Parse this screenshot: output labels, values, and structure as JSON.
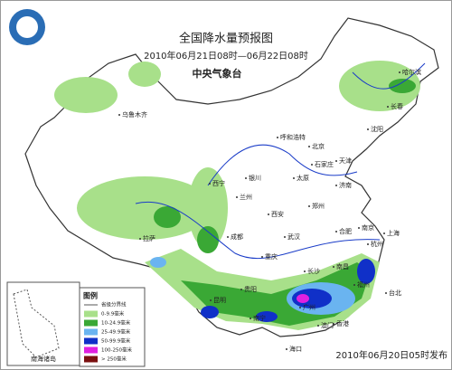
{
  "header": {
    "title": "全国降水量预报图",
    "period": "2010年06月21日08时—06月22日08时",
    "agency": "中央气象台"
  },
  "footer": {
    "issued": "2010年06月20日05时发布"
  },
  "cities": [
    "乌鲁木齐",
    "哈尔滨",
    "长春",
    "沈阳",
    "呼和浩特",
    "北京",
    "天津",
    "石家庄",
    "太原",
    "济南",
    "银川",
    "西宁",
    "兰州",
    "西安",
    "郑州",
    "南京",
    "合肥",
    "上海",
    "杭州",
    "武汉",
    "成都",
    "重庆",
    "拉萨",
    "长沙",
    "南昌",
    "福州",
    "台北",
    "贵阳",
    "昆明",
    "南宁",
    "广州",
    "香港",
    "澳门",
    "海口"
  ],
  "inset": {
    "label": "南海诸岛"
  },
  "legend": {
    "title": "图例",
    "boundary": "省级分界线",
    "items": [
      "0-9.9毫米",
      "10-24.9毫米",
      "25-49.9毫米",
      "50-99.9毫米",
      "100-250毫米",
      "> 250毫米"
    ]
  }
}
